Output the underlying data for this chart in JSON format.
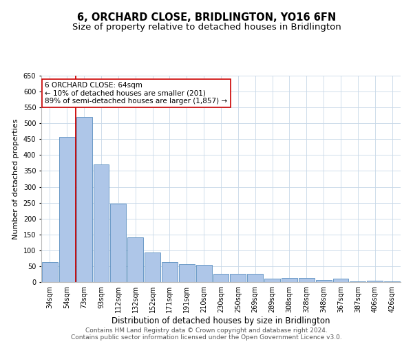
{
  "title": "6, ORCHARD CLOSE, BRIDLINGTON, YO16 6FN",
  "subtitle": "Size of property relative to detached houses in Bridlington",
  "xlabel": "Distribution of detached houses by size in Bridlington",
  "ylabel": "Number of detached properties",
  "categories": [
    "34sqm",
    "54sqm",
    "73sqm",
    "93sqm",
    "112sqm",
    "132sqm",
    "152sqm",
    "171sqm",
    "191sqm",
    "210sqm",
    "230sqm",
    "250sqm",
    "269sqm",
    "289sqm",
    "308sqm",
    "328sqm",
    "348sqm",
    "367sqm",
    "387sqm",
    "406sqm",
    "426sqm"
  ],
  "values": [
    62,
    458,
    520,
    370,
    248,
    140,
    93,
    62,
    57,
    55,
    25,
    25,
    25,
    10,
    12,
    12,
    6,
    10,
    3,
    5,
    3
  ],
  "bar_color": "#aec6e8",
  "bar_edge_color": "#5a8fc0",
  "vline_color": "#cc0000",
  "annotation_text": "6 ORCHARD CLOSE: 64sqm\n← 10% of detached houses are smaller (201)\n89% of semi-detached houses are larger (1,857) →",
  "annotation_box_color": "#ffffff",
  "annotation_box_edge_color": "#cc0000",
  "ylim": [
    0,
    650
  ],
  "yticks": [
    0,
    50,
    100,
    150,
    200,
    250,
    300,
    350,
    400,
    450,
    500,
    550,
    600,
    650
  ],
  "background_color": "#ffffff",
  "grid_color": "#c8d8e8",
  "footer1": "Contains HM Land Registry data © Crown copyright and database right 2024.",
  "footer2": "Contains public sector information licensed under the Open Government Licence v3.0.",
  "title_fontsize": 10.5,
  "subtitle_fontsize": 9.5,
  "xlabel_fontsize": 8.5,
  "ylabel_fontsize": 8,
  "tick_fontsize": 7,
  "annotation_fontsize": 7.5,
  "footer_fontsize": 6.5
}
